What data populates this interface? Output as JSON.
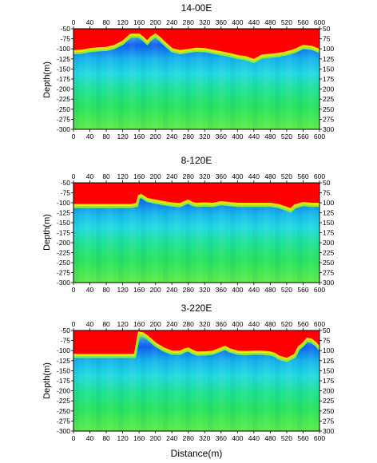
{
  "chart_data": [
    {
      "type": "heatmap",
      "title": "14-00E",
      "ylabel": "Depth(m)",
      "xlabel": "",
      "xlim": [
        0,
        600
      ],
      "ylim": [
        -50,
        -300
      ],
      "x_ticks": [
        "0",
        "40",
        "80",
        "120",
        "160",
        "200",
        "240",
        "280",
        "320",
        "360",
        "400",
        "440",
        "480",
        "520",
        "560",
        "600"
      ],
      "y_ticks_left": [
        "-50",
        "-75",
        "-100",
        "-125",
        "-150",
        "-175",
        "-200",
        "-225",
        "-250",
        "-275",
        "-300"
      ],
      "y_ticks_right": [
        "50",
        "75",
        "100",
        "125",
        "150",
        "175",
        "200",
        "225",
        "250",
        "275",
        "300"
      ],
      "colors": {
        "top": "#ff0000",
        "band": "#1e6cf0",
        "mid": "#22d8e8",
        "bottom": "#21e26e"
      },
      "boundary": {
        "x": [
          0,
          20,
          40,
          60,
          80,
          100,
          120,
          140,
          160,
          170,
          180,
          190,
          200,
          210,
          220,
          240,
          260,
          280,
          300,
          320,
          340,
          360,
          380,
          400,
          420,
          440,
          460,
          480,
          500,
          520,
          540,
          560,
          580,
          600
        ],
        "depth": [
          -103,
          -102,
          -98,
          -96,
          -95,
          -90,
          -80,
          -62,
          -62,
          -70,
          -80,
          -68,
          -62,
          -70,
          -80,
          -98,
          -103,
          -100,
          -97,
          -98,
          -102,
          -106,
          -110,
          -115,
          -118,
          -125,
          -114,
          -112,
          -110,
          -106,
          -100,
          -90,
          -92,
          -100
        ]
      }
    },
    {
      "type": "heatmap",
      "title": "8-120E",
      "ylabel": "Depth(m)",
      "xlabel": "",
      "xlim": [
        0,
        600
      ],
      "ylim": [
        -50,
        -300
      ],
      "x_ticks": [
        "0",
        "40",
        "80",
        "120",
        "160",
        "200",
        "240",
        "280",
        "320",
        "360",
        "400",
        "440",
        "480",
        "520",
        "560",
        "600"
      ],
      "y_ticks_left": [
        "-50",
        "-75",
        "-100",
        "-125",
        "-150",
        "-175",
        "-200",
        "-225",
        "-250",
        "-275",
        "-300"
      ],
      "y_ticks_right": [
        "50",
        "75",
        "100",
        "125",
        "150",
        "175",
        "200",
        "225",
        "250",
        "275",
        "300"
      ],
      "colors": {
        "top": "#ff0000",
        "band": "#1e6cf0",
        "mid": "#22d8e8",
        "bottom": "#21e26e"
      },
      "boundary": {
        "x": [
          0,
          20,
          40,
          60,
          80,
          100,
          120,
          140,
          155,
          160,
          165,
          180,
          200,
          220,
          240,
          260,
          270,
          280,
          290,
          300,
          320,
          340,
          360,
          380,
          400,
          420,
          440,
          460,
          480,
          500,
          520,
          530,
          540,
          560,
          580,
          600
        ],
        "depth": [
          -103,
          -103,
          -103,
          -103,
          -103,
          -103,
          -103,
          -103,
          -100,
          -80,
          -78,
          -88,
          -92,
          -96,
          -99,
          -101,
          -96,
          -92,
          -98,
          -100,
          -99,
          -100,
          -96,
          -98,
          -100,
          -100,
          -100,
          -100,
          -100,
          -103,
          -110,
          -114,
          -104,
          -98,
          -100,
          -100
        ]
      }
    },
    {
      "type": "heatmap",
      "title": "3-220E",
      "ylabel": "Depth(m)",
      "xlabel": "Distance(m)",
      "xlim": [
        0,
        600
      ],
      "ylim": [
        -50,
        -300
      ],
      "x_ticks": [
        "0",
        "40",
        "80",
        "120",
        "160",
        "200",
        "240",
        "280",
        "320",
        "360",
        "400",
        "440",
        "480",
        "520",
        "560",
        "600"
      ],
      "y_ticks_left": [
        "-50",
        "-75",
        "-100",
        "-125",
        "-150",
        "-175",
        "-200",
        "-225",
        "-250",
        "-275",
        "-300"
      ],
      "y_ticks_right": [
        "50",
        "75",
        "100",
        "125",
        "150",
        "175",
        "200",
        "225",
        "250",
        "275",
        "300"
      ],
      "colors": {
        "top": "#ff0000",
        "band": "#1e6cf0",
        "mid": "#22d8e8",
        "bottom": "#21e26e"
      },
      "boundary": {
        "x": [
          0,
          20,
          40,
          60,
          80,
          100,
          120,
          140,
          150,
          155,
          160,
          170,
          180,
          200,
          220,
          240,
          260,
          270,
          280,
          290,
          300,
          320,
          340,
          360,
          370,
          380,
          400,
          420,
          440,
          460,
          480,
          490,
          500,
          520,
          540,
          550,
          560,
          570,
          580,
          590,
          600
        ],
        "depth": [
          -108,
          -108,
          -108,
          -108,
          -108,
          -108,
          -108,
          -108,
          -108,
          -80,
          -53,
          -55,
          -62,
          -80,
          -92,
          -100,
          -100,
          -95,
          -92,
          -98,
          -102,
          -102,
          -100,
          -92,
          -88,
          -94,
          -100,
          -101,
          -100,
          -100,
          -102,
          -105,
          -112,
          -118,
          -108,
          -88,
          -80,
          -68,
          -70,
          -78,
          -90
        ]
      }
    }
  ]
}
